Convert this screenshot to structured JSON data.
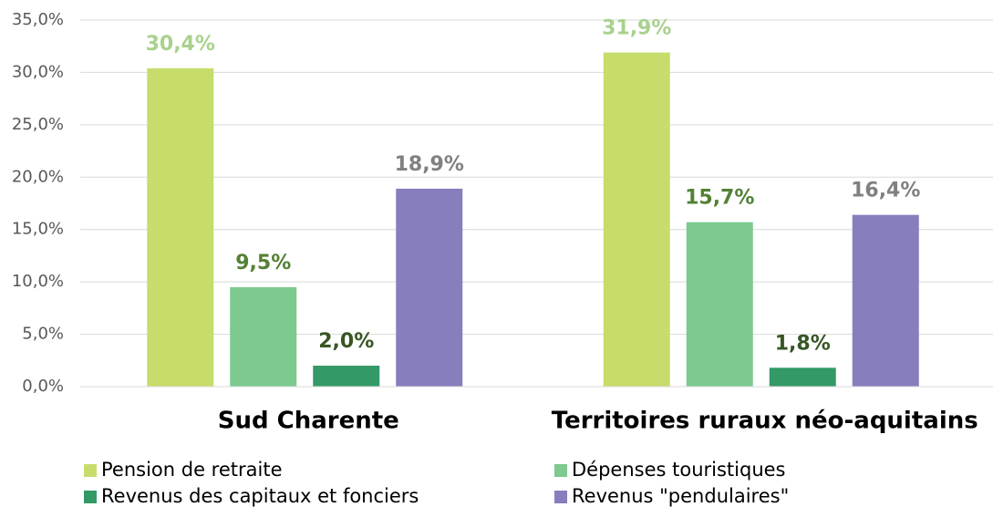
{
  "chart_data": {
    "type": "bar",
    "categories": [
      "Sud Charente",
      "Territoires ruraux néo-aquitains"
    ],
    "series": [
      {
        "name": "Pension de retraite",
        "color": "#c6dd6c",
        "label_color": "#a9d18e",
        "values": [
          30.4,
          31.9
        ],
        "value_labels": [
          "30,4%",
          "31,9%"
        ]
      },
      {
        "name": "Dépenses touristiques",
        "color": "#7dc98f",
        "label_color": "#538135",
        "values": [
          9.5,
          15.7
        ],
        "value_labels": [
          "9,5%",
          "15,7%"
        ]
      },
      {
        "name": "Revenus des capitaux et fonciers",
        "color": "#339966",
        "label_color": "#375623",
        "values": [
          2.0,
          1.8
        ],
        "value_labels": [
          "2,0%",
          "1,8%"
        ]
      },
      {
        "name": "Revenus \"pendulaires\"",
        "color": "#867ebd",
        "label_color": "#808080",
        "values": [
          18.9,
          16.4
        ],
        "value_labels": [
          "18,9%",
          "16,4%"
        ]
      }
    ],
    "ylim": [
      0,
      35
    ],
    "yticks": [
      {
        "value": 0,
        "label": "0,0%"
      },
      {
        "value": 5,
        "label": "5,0%"
      },
      {
        "value": 10,
        "label": "10,0%"
      },
      {
        "value": 15,
        "label": "15,0%"
      },
      {
        "value": 20,
        "label": "20,0%"
      },
      {
        "value": 25,
        "label": "25,0%"
      },
      {
        "value": 30,
        "label": "30,0%"
      },
      {
        "value": 35,
        "label": "35,0%"
      }
    ],
    "grid": true,
    "legend": "bottom"
  }
}
